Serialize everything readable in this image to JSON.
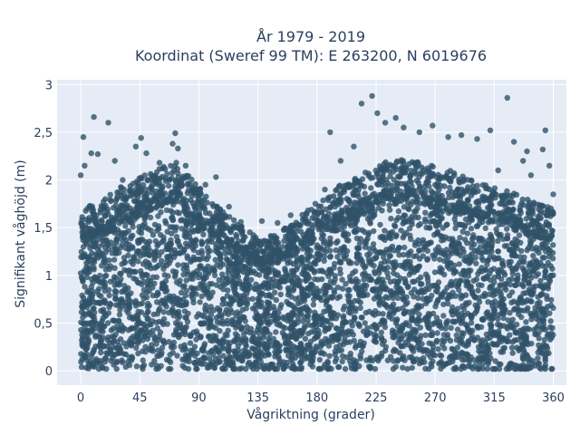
{
  "chart_data": {
    "type": "scatter",
    "title_line1": "År 1979 - 2019",
    "title_line2": "Koordinat (Sweref 99 TM): E 263200, N 6019676",
    "xlabel": "Vågriktning (grader)",
    "ylabel": "Signifikant våghöjd (m)",
    "xlim": [
      -18,
      370
    ],
    "ylim": [
      -0.15,
      3.05
    ],
    "x_ticks": [
      0,
      45,
      90,
      135,
      180,
      225,
      270,
      315,
      360
    ],
    "x_tick_labels": [
      "0",
      "45",
      "90",
      "135",
      "180",
      "225",
      "270",
      "315",
      "360"
    ],
    "y_ticks": [
      0,
      0.5,
      1,
      1.5,
      2,
      2.5,
      3
    ],
    "y_tick_labels": [
      "0",
      "0,5",
      "1",
      "1,5",
      "2",
      "2,5",
      "3"
    ],
    "grid": true,
    "marker_color": "#2f5269",
    "background_color": "#e5ecf6",
    "envelope": {
      "x": [
        0,
        10,
        20,
        30,
        45,
        55,
        65,
        72,
        80,
        90,
        100,
        110,
        120,
        135,
        150,
        165,
        180,
        195,
        210,
        225,
        240,
        255,
        270,
        285,
        300,
        315,
        330,
        345,
        360
      ],
      "y_max": [
        1.55,
        1.65,
        1.7,
        1.8,
        1.9,
        1.95,
        2.05,
        2.1,
        1.95,
        1.8,
        1.65,
        1.55,
        1.45,
        1.3,
        1.35,
        1.5,
        1.65,
        1.8,
        1.9,
        2.0,
        2.1,
        2.05,
        2.0,
        1.95,
        1.85,
        1.8,
        1.75,
        1.65,
        1.6
      ]
    },
    "outliers": [
      {
        "x": 2,
        "y": 2.45
      },
      {
        "x": 10,
        "y": 2.66
      },
      {
        "x": 21,
        "y": 2.6
      },
      {
        "x": 8,
        "y": 2.28
      },
      {
        "x": 13,
        "y": 2.27
      },
      {
        "x": 26,
        "y": 2.2
      },
      {
        "x": 42,
        "y": 2.35
      },
      {
        "x": 46,
        "y": 2.44
      },
      {
        "x": 50,
        "y": 2.28
      },
      {
        "x": 72,
        "y": 2.49
      },
      {
        "x": 70,
        "y": 2.38
      },
      {
        "x": 74,
        "y": 2.33
      },
      {
        "x": 80,
        "y": 2.15
      },
      {
        "x": 103,
        "y": 2.03
      },
      {
        "x": 190,
        "y": 2.5
      },
      {
        "x": 214,
        "y": 2.8
      },
      {
        "x": 222,
        "y": 2.88
      },
      {
        "x": 226,
        "y": 2.7
      },
      {
        "x": 232,
        "y": 2.6
      },
      {
        "x": 240,
        "y": 2.65
      },
      {
        "x": 246,
        "y": 2.55
      },
      {
        "x": 258,
        "y": 2.5
      },
      {
        "x": 268,
        "y": 2.57
      },
      {
        "x": 280,
        "y": 2.45
      },
      {
        "x": 290,
        "y": 2.47
      },
      {
        "x": 302,
        "y": 2.43
      },
      {
        "x": 312,
        "y": 2.52
      },
      {
        "x": 325,
        "y": 2.86
      },
      {
        "x": 330,
        "y": 2.4
      },
      {
        "x": 340,
        "y": 2.3
      },
      {
        "x": 354,
        "y": 2.52
      },
      {
        "x": 352,
        "y": 2.32
      },
      {
        "x": 357,
        "y": 2.15
      },
      {
        "x": 360,
        "y": 1.85
      },
      {
        "x": 198,
        "y": 2.2
      },
      {
        "x": 208,
        "y": 2.35
      },
      {
        "x": 186,
        "y": 1.9
      },
      {
        "x": 150,
        "y": 1.55
      },
      {
        "x": 160,
        "y": 1.63
      },
      {
        "x": 138,
        "y": 1.57
      },
      {
        "x": 122,
        "y": 1.56
      },
      {
        "x": 113,
        "y": 1.72
      },
      {
        "x": 95,
        "y": 1.95
      },
      {
        "x": 32,
        "y": 2.0
      },
      {
        "x": 60,
        "y": 2.18
      },
      {
        "x": 0,
        "y": 2.05
      },
      {
        "x": 3,
        "y": 2.15
      },
      {
        "x": 343,
        "y": 2.05
      },
      {
        "x": 337,
        "y": 2.2
      },
      {
        "x": 318,
        "y": 2.1
      }
    ]
  }
}
